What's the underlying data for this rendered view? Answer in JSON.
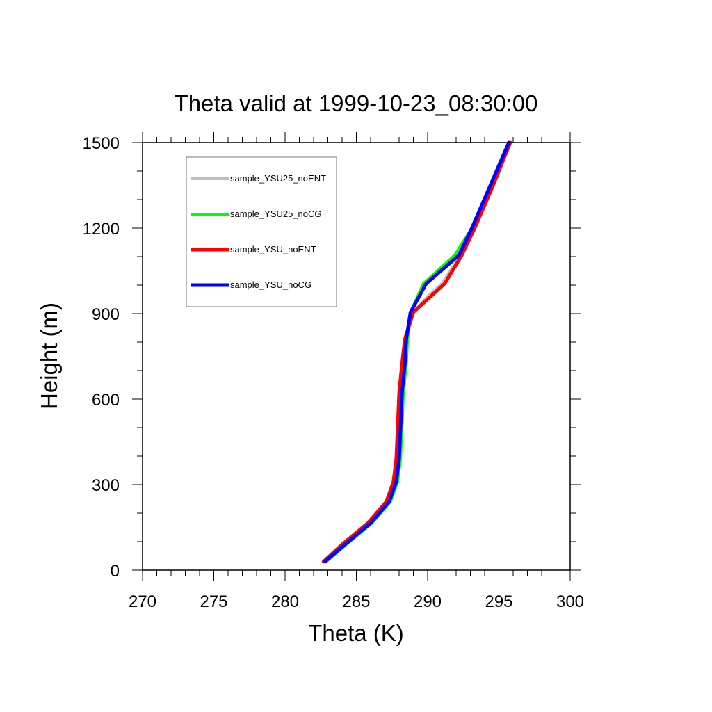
{
  "chart_data": {
    "type": "line",
    "title": "Theta valid at 1999-10-23_08:30:00",
    "xlabel": "Theta (K)",
    "ylabel": "Height (m)",
    "xlim": [
      270,
      300
    ],
    "ylim": [
      0,
      1500
    ],
    "x_ticks": [
      270,
      275,
      280,
      285,
      290,
      295,
      300
    ],
    "y_ticks": [
      0,
      300,
      600,
      900,
      1200,
      1500
    ],
    "x_minor_step": 1,
    "y_minor_step": 100,
    "grid": false,
    "legend_position": "top-left",
    "series": [
      {
        "name": "sample_YSU25_noENT",
        "color": "#bebebe",
        "line_width": 4,
        "points": [
          [
            282.9,
            30
          ],
          [
            284.2,
            90
          ],
          [
            286.0,
            165
          ],
          [
            287.3,
            240
          ],
          [
            287.8,
            310
          ],
          [
            288.0,
            390
          ],
          [
            288.1,
            500
          ],
          [
            288.2,
            620
          ],
          [
            288.4,
            720
          ],
          [
            288.5,
            810
          ],
          [
            289.0,
            905
          ],
          [
            290.0,
            960
          ],
          [
            291.0,
            1005
          ],
          [
            292.3,
            1105
          ],
          [
            293.2,
            1200
          ],
          [
            294.5,
            1350
          ],
          [
            295.7,
            1500
          ]
        ]
      },
      {
        "name": "sample_YSU25_noCG",
        "color": "#00ff00",
        "line_width": 4,
        "points": [
          [
            282.9,
            30
          ],
          [
            284.3,
            90
          ],
          [
            286.1,
            165
          ],
          [
            287.4,
            240
          ],
          [
            287.9,
            310
          ],
          [
            288.1,
            390
          ],
          [
            288.2,
            500
          ],
          [
            288.3,
            620
          ],
          [
            288.5,
            720
          ],
          [
            288.6,
            810
          ],
          [
            288.8,
            905
          ],
          [
            289.7,
            1005
          ],
          [
            291.9,
            1105
          ],
          [
            293.1,
            1200
          ],
          [
            294.4,
            1350
          ],
          [
            295.7,
            1500
          ]
        ]
      },
      {
        "name": "sample_YSU_noENT",
        "color": "#ff0000",
        "line_width": 5,
        "points": [
          [
            282.7,
            30
          ],
          [
            284.0,
            90
          ],
          [
            285.8,
            165
          ],
          [
            287.1,
            240
          ],
          [
            287.6,
            310
          ],
          [
            287.8,
            390
          ],
          [
            287.9,
            500
          ],
          [
            288.0,
            620
          ],
          [
            288.2,
            720
          ],
          [
            288.4,
            810
          ],
          [
            289.0,
            905
          ],
          [
            291.2,
            1005
          ],
          [
            292.4,
            1105
          ],
          [
            293.3,
            1200
          ],
          [
            294.6,
            1350
          ],
          [
            295.8,
            1500
          ]
        ]
      },
      {
        "name": "sample_YSU_noCG",
        "color": "#0000ff",
        "line_width": 5,
        "points": [
          [
            282.8,
            30
          ],
          [
            284.2,
            90
          ],
          [
            286.0,
            165
          ],
          [
            287.3,
            240
          ],
          [
            287.8,
            310
          ],
          [
            288.0,
            390
          ],
          [
            288.1,
            500
          ],
          [
            288.2,
            620
          ],
          [
            288.4,
            720
          ],
          [
            288.5,
            810
          ],
          [
            288.8,
            905
          ],
          [
            289.9,
            1005
          ],
          [
            292.2,
            1105
          ],
          [
            293.1,
            1200
          ],
          [
            294.4,
            1350
          ],
          [
            295.7,
            1500
          ]
        ]
      }
    ]
  }
}
